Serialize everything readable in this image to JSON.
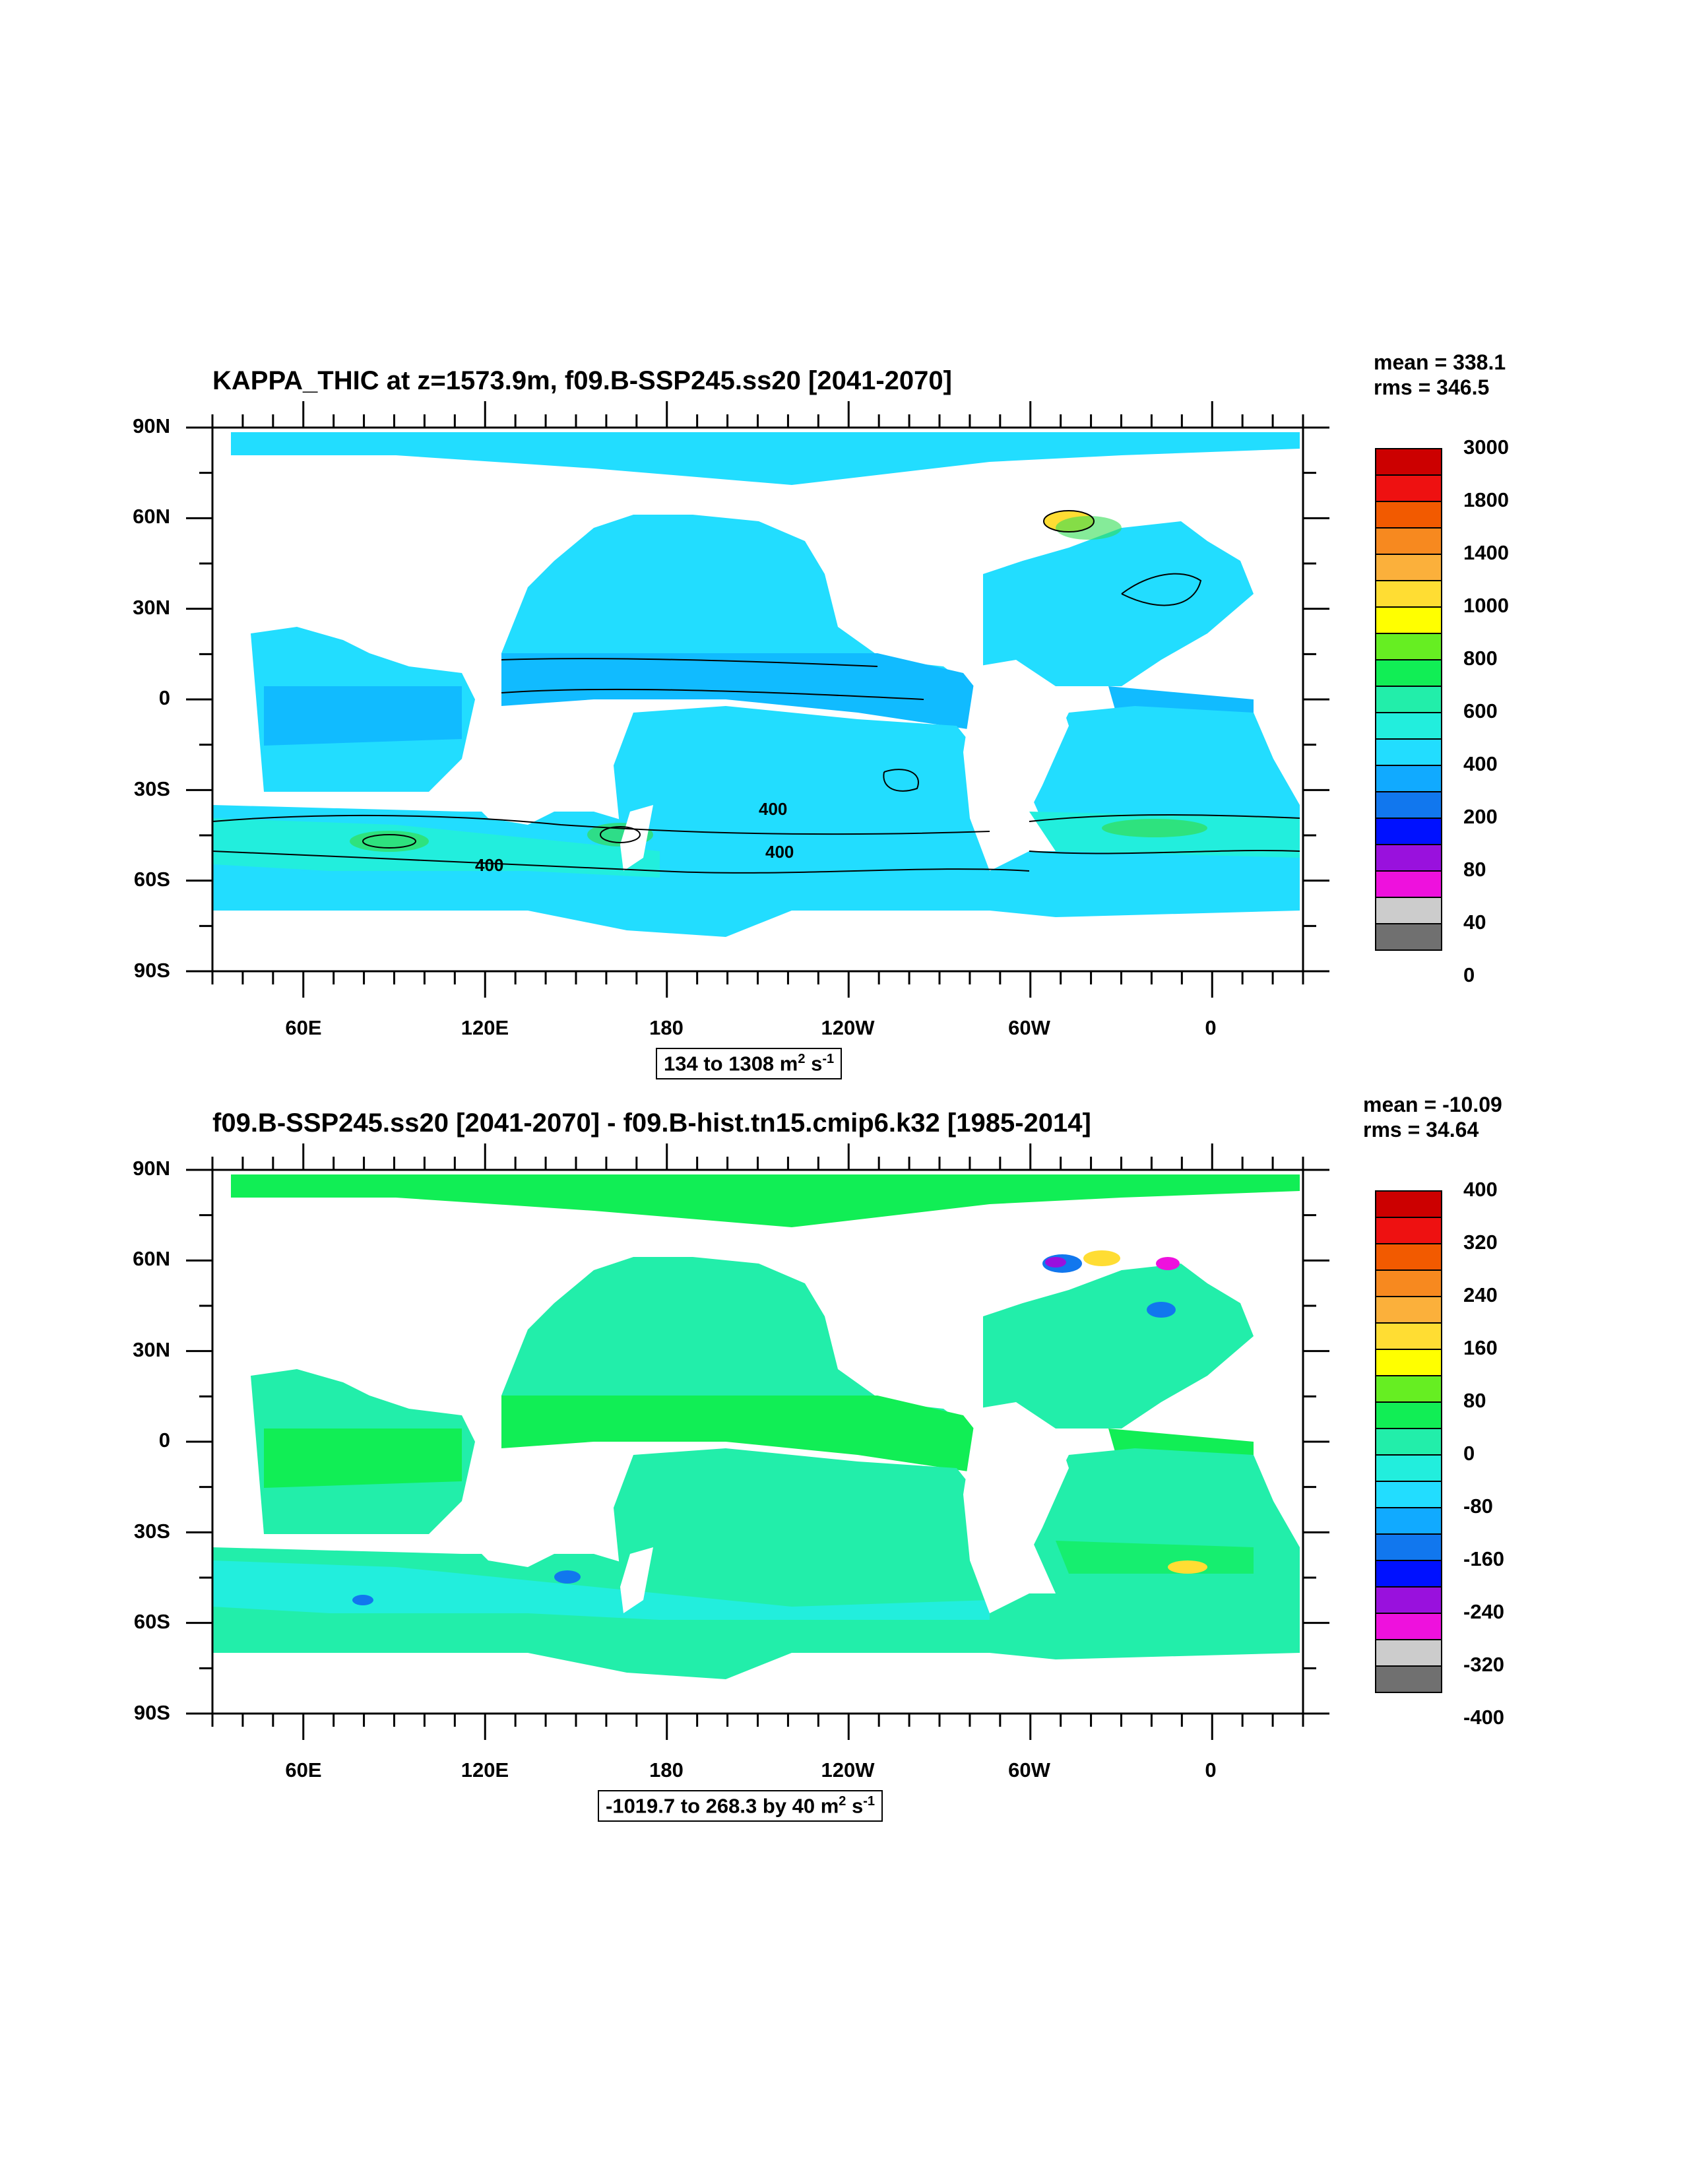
{
  "panels": [
    {
      "title": "KAPPA_THIC at z=1573.9m, f09.B-SSP245.ss20 [2041-2070]",
      "stats": {
        "mean": "mean = 338.1",
        "rms": "rms = 346.5"
      },
      "lat_labels": [
        "90N",
        "60N",
        "30N",
        "0",
        "30S",
        "60S",
        "90S"
      ],
      "lon_labels": [
        "60E",
        "120E",
        "180",
        "120W",
        "60W",
        "0"
      ],
      "range_text": "134 to 1308 m",
      "range_sup1": "2",
      "range_mid": " s",
      "range_sup2": "-1",
      "colorbar_labels": [
        "3000",
        "1800",
        "1400",
        "1000",
        "800",
        "600",
        "400",
        "200",
        "80",
        "40",
        "0"
      ],
      "contour_labels": [
        "400",
        "400",
        "400"
      ]
    },
    {
      "title": "f09.B-SSP245.ss20 [2041-2070] - f09.B-hist.tn15.cmip6.k32 [1985-2014]",
      "stats": {
        "mean": "mean = -10.09",
        "rms": "rms = 34.64"
      },
      "lat_labels": [
        "90N",
        "60N",
        "30N",
        "0",
        "30S",
        "60S",
        "90S"
      ],
      "lon_labels": [
        "60E",
        "120E",
        "180",
        "120W",
        "60W",
        "0"
      ],
      "range_text": "-1019.7 to 268.3 by 40 m",
      "range_sup1": "2",
      "range_mid": " s",
      "range_sup2": "-1",
      "colorbar_labels": [
        "400",
        "320",
        "240",
        "160",
        "80",
        "0",
        "-80",
        "-160",
        "-240",
        "-320",
        "-400"
      ]
    }
  ],
  "colorbar_colors": [
    "#CC0000",
    "#EE1111",
    "#F25A00",
    "#F7891F",
    "#FBB03B",
    "#FFDD33",
    "#FFFF00",
    "#66EE22",
    "#11EE55",
    "#22EEAA",
    "#22EEDD",
    "#22DDFF",
    "#11AAFF",
    "#1177EE",
    "#0011FF",
    "#9911DD",
    "#EE11DD",
    "#CCCCCC",
    "#707070"
  ],
  "map_colors": {
    "p1_base": "#22DDFF",
    "p1_band": "#11BBFF",
    "p1_south": "#22EEDD",
    "p1_green": "#33DD55",
    "p1_yellow": "#FFDD33",
    "p2_base": "#22EEAA",
    "p2_green": "#11EE55",
    "p2_cyan": "#22EEDD",
    "p2_blue": "#1177EE",
    "p2_purple": "#9911DD",
    "p2_magenta": "#EE11DD",
    "p2_yellow": "#FFDD33"
  }
}
